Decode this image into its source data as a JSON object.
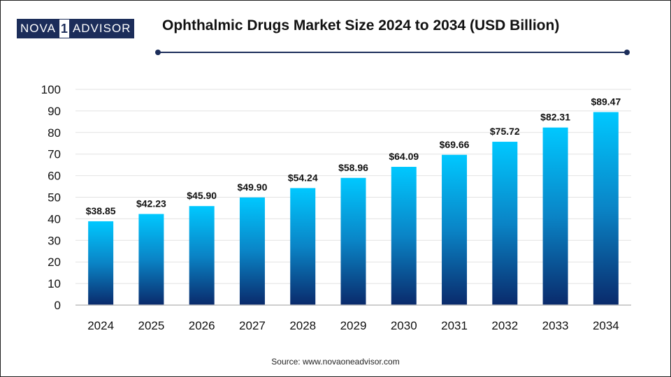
{
  "logo": {
    "part1": "NOVA",
    "part2": "1",
    "part3": "ADVISOR"
  },
  "header": {
    "title": "Ophthalmic Drugs Market Size 2024 to 2034 (USD Billion)"
  },
  "footer": {
    "source": "Source: www.novaoneadvisor.com"
  },
  "colors": {
    "bar_top": "#00c8ff",
    "bar_bottom": "#0a2a6b",
    "accent": "#1c2d5a"
  },
  "chart_data": {
    "type": "bar",
    "title": "Ophthalmic Drugs Market Size 2024 to 2034 (USD Billion)",
    "categories": [
      "2024",
      "2025",
      "2026",
      "2027",
      "2028",
      "2029",
      "2030",
      "2031",
      "2032",
      "2033",
      "2034"
    ],
    "values": [
      38.85,
      42.23,
      45.9,
      49.9,
      54.24,
      58.96,
      64.09,
      69.66,
      75.72,
      82.31,
      89.47
    ],
    "data_labels": [
      "$38.85",
      "$42.23",
      "$45.90",
      "$49.90",
      "$54.24",
      "$58.96",
      "$64.09",
      "$69.66",
      "$75.72",
      "$82.31",
      "$89.47"
    ],
    "yticks": [
      "0",
      "10",
      "20",
      "30",
      "40",
      "50",
      "60",
      "70",
      "80",
      "90",
      "100"
    ],
    "ylim": [
      0,
      100
    ],
    "grid": true,
    "xlabel": "",
    "ylabel": ""
  }
}
